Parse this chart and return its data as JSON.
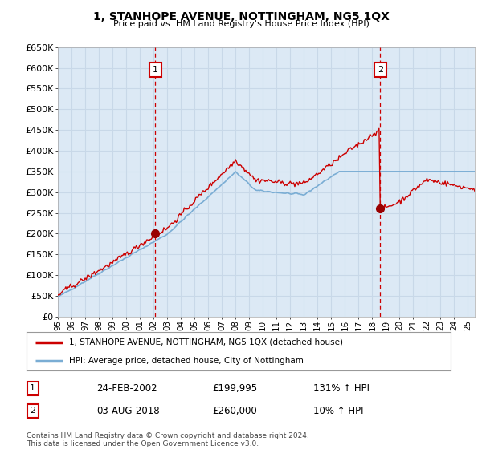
{
  "title": "1, STANHOPE AVENUE, NOTTINGHAM, NG5 1QX",
  "subtitle": "Price paid vs. HM Land Registry's House Price Index (HPI)",
  "ylim": [
    0,
    650000
  ],
  "yticks": [
    0,
    50000,
    100000,
    150000,
    200000,
    250000,
    300000,
    350000,
    400000,
    450000,
    500000,
    550000,
    600000,
    650000
  ],
  "ytick_labels": [
    "£0",
    "£50K",
    "£100K",
    "£150K",
    "£200K",
    "£250K",
    "£300K",
    "£350K",
    "£400K",
    "£450K",
    "£500K",
    "£550K",
    "£600K",
    "£650K"
  ],
  "xlim_start": 1995.0,
  "xlim_end": 2025.5,
  "background_color": "#ffffff",
  "plot_bg_color": "#dce9f5",
  "grid_color": "#c8d8e8",
  "red_line_color": "#cc0000",
  "blue_line_color": "#7aadd4",
  "sale1_x": 2002.14,
  "sale1_y": 199995,
  "sale2_x": 2018.58,
  "sale2_y": 260000,
  "legend_label1": "1, STANHOPE AVENUE, NOTTINGHAM, NG5 1QX (detached house)",
  "legend_label2": "HPI: Average price, detached house, City of Nottingham",
  "annotation1_date": "24-FEB-2002",
  "annotation1_price": "£199,995",
  "annotation1_hpi": "131% ↑ HPI",
  "annotation2_date": "03-AUG-2018",
  "annotation2_price": "£260,000",
  "annotation2_hpi": "10% ↑ HPI",
  "footer": "Contains HM Land Registry data © Crown copyright and database right 2024.\nThis data is licensed under the Open Government Licence v3.0."
}
